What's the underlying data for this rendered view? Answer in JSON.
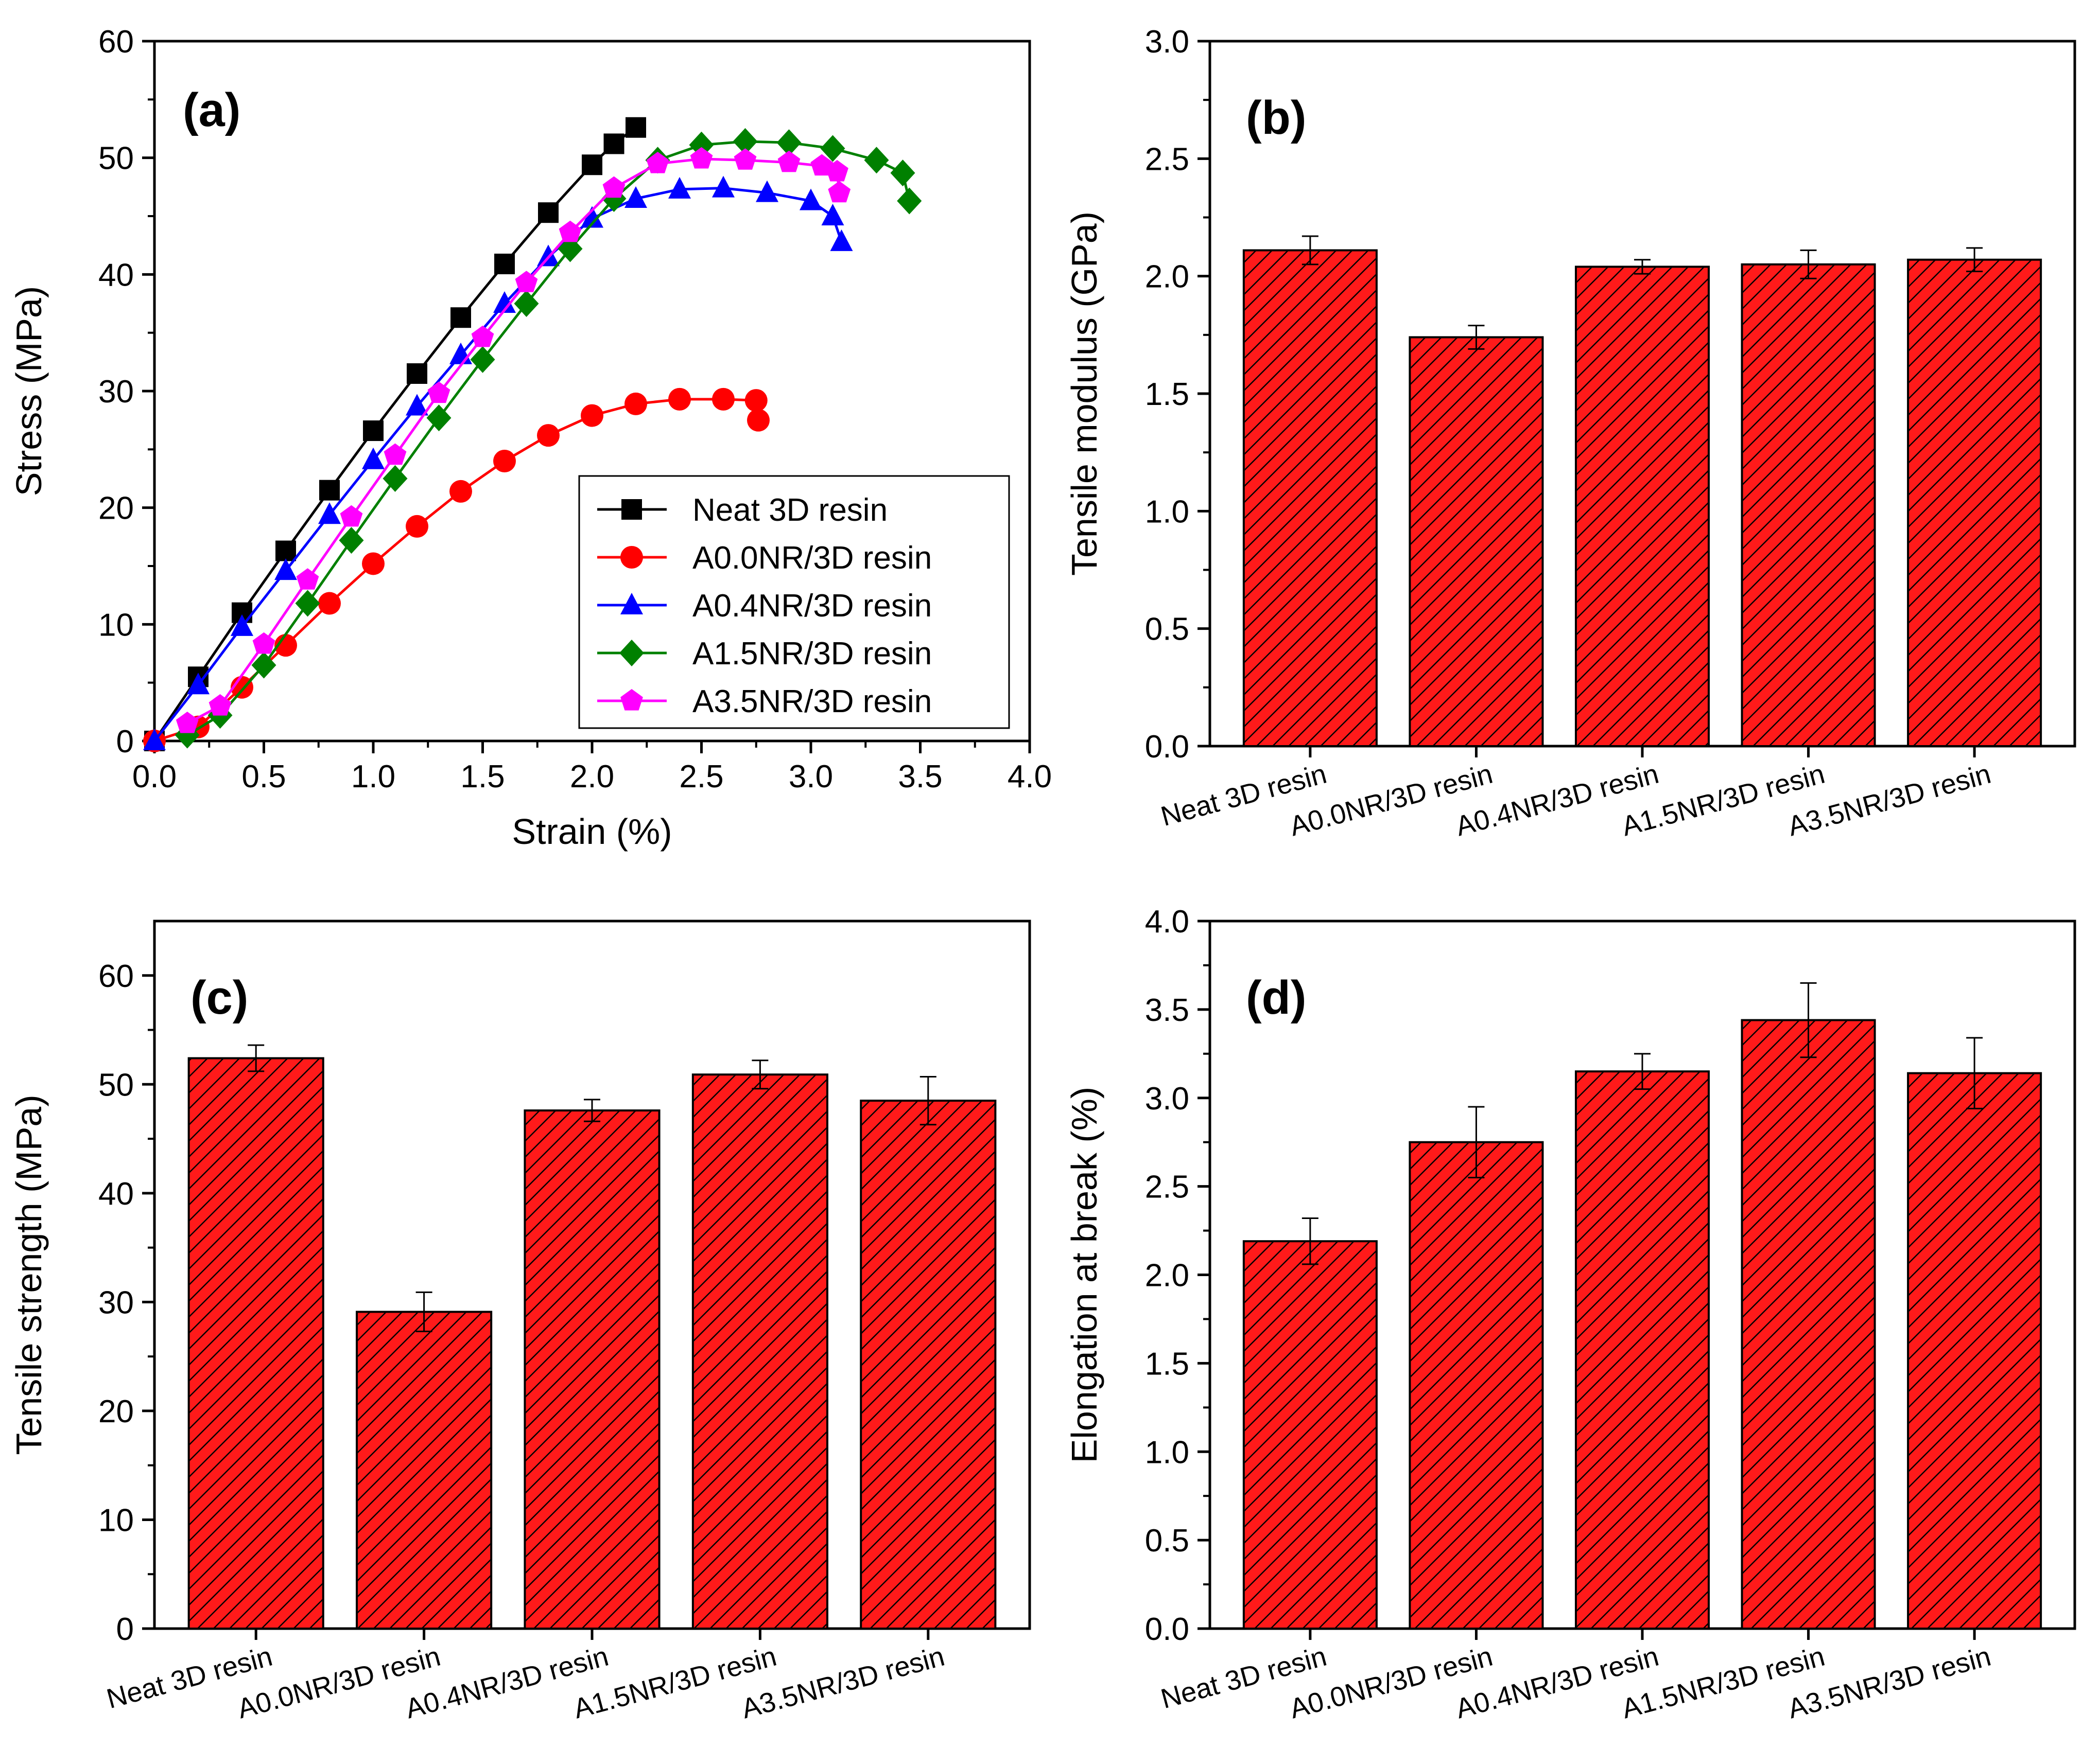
{
  "chart_data": [
    {
      "panel_label": "(a)",
      "type": "scatter",
      "xlabel": "Strain (%)",
      "ylabel": "Stress (MPa)",
      "xlim": [
        0.0,
        4.0
      ],
      "ylim": [
        0,
        60
      ],
      "xticks": [
        "0.0",
        "0.5",
        "1.0",
        "1.5",
        "2.0",
        "2.5",
        "3.0",
        "3.5",
        "4.0"
      ],
      "yticks": [
        "0",
        "10",
        "20",
        "30",
        "40",
        "50",
        "60"
      ],
      "legend_position": "bottom-right",
      "series": [
        {
          "name": "Neat 3D resin",
          "color": "#000000",
          "marker": "square",
          "x": [
            0.0,
            0.2,
            0.4,
            0.6,
            0.8,
            1.0,
            1.2,
            1.4,
            1.6,
            1.8,
            2.0,
            2.1,
            2.2
          ],
          "y": [
            0.0,
            5.5,
            11.0,
            16.3,
            21.5,
            26.6,
            31.5,
            36.3,
            40.9,
            45.3,
            49.4,
            51.2,
            52.6
          ]
        },
        {
          "name": "A0.0NR/3D resin",
          "color": "#ff0000",
          "marker": "circle",
          "x": [
            0.0,
            0.2,
            0.4,
            0.6,
            0.8,
            1.0,
            1.2,
            1.4,
            1.6,
            1.8,
            2.0,
            2.2,
            2.4,
            2.6,
            2.75,
            2.76
          ],
          "y": [
            0.0,
            1.2,
            4.6,
            8.2,
            11.8,
            15.2,
            18.4,
            21.4,
            24.0,
            26.2,
            27.9,
            28.9,
            29.3,
            29.3,
            29.2,
            27.5
          ]
        },
        {
          "name": "A0.4NR/3D resin",
          "color": "#0000ff",
          "marker": "triangle",
          "x": [
            0.0,
            0.2,
            0.4,
            0.6,
            0.8,
            1.0,
            1.2,
            1.4,
            1.6,
            1.8,
            2.0,
            2.2,
            2.4,
            2.6,
            2.8,
            3.0,
            3.1,
            3.14
          ],
          "y": [
            0.0,
            4.8,
            9.8,
            14.6,
            19.4,
            24.1,
            28.7,
            33.1,
            37.5,
            41.5,
            44.8,
            46.5,
            47.3,
            47.4,
            47.0,
            46.3,
            45.0,
            42.8
          ]
        },
        {
          "name": "A1.5NR/3D resin",
          "color": "#008000",
          "marker": "diamond",
          "x": [
            0.15,
            0.3,
            0.5,
            0.7,
            0.9,
            1.1,
            1.3,
            1.5,
            1.7,
            1.9,
            2.1,
            2.3,
            2.5,
            2.7,
            2.9,
            3.1,
            3.3,
            3.42,
            3.45
          ],
          "y": [
            0.5,
            2.2,
            6.5,
            11.8,
            17.2,
            22.5,
            27.7,
            32.7,
            37.5,
            42.2,
            46.5,
            49.8,
            51.1,
            51.4,
            51.3,
            50.8,
            49.8,
            48.7,
            46.3
          ]
        },
        {
          "name": "A3.5NR/3D resin",
          "color": "#ff00ff",
          "marker": "pentagon",
          "x": [
            0.15,
            0.3,
            0.5,
            0.7,
            0.9,
            1.1,
            1.3,
            1.5,
            1.7,
            1.9,
            2.1,
            2.3,
            2.5,
            2.7,
            2.9,
            3.05,
            3.12,
            3.13
          ],
          "y": [
            1.5,
            3.0,
            8.3,
            13.8,
            19.2,
            24.5,
            29.8,
            34.6,
            39.3,
            43.6,
            47.4,
            49.5,
            49.9,
            49.8,
            49.6,
            49.3,
            48.8,
            47.0
          ]
        }
      ]
    },
    {
      "panel_label": "(b)",
      "type": "bar",
      "ylabel": "Tensile modulus (GPa)",
      "ylim": [
        0.0,
        3.0
      ],
      "yticks": [
        "0.0",
        "0.5",
        "1.0",
        "1.5",
        "2.0",
        "2.5",
        "3.0"
      ],
      "categories": [
        "Neat 3D resin",
        "A0.0NR/3D resin",
        "A0.4NR/3D resin",
        "A1.5NR/3D resin",
        "A3.5NR/3D resin"
      ],
      "values": [
        2.11,
        1.74,
        2.04,
        2.05,
        2.07
      ],
      "errors": [
        0.06,
        0.05,
        0.03,
        0.06,
        0.05
      ]
    },
    {
      "panel_label": "(c)",
      "type": "bar",
      "ylabel": "Tensile strength (MPa)",
      "ylim": [
        0,
        65
      ],
      "yticks": [
        "0",
        "10",
        "20",
        "30",
        "40",
        "50",
        "60"
      ],
      "categories": [
        "Neat 3D resin",
        "A0.0NR/3D resin",
        "A0.4NR/3D resin",
        "A1.5NR/3D resin",
        "A3.5NR/3D resin"
      ],
      "values": [
        52.4,
        29.1,
        47.6,
        50.9,
        48.5
      ],
      "errors": [
        1.2,
        1.8,
        1.0,
        1.3,
        2.2
      ]
    },
    {
      "panel_label": "(d)",
      "type": "bar",
      "ylabel": "Elongation at break (%)",
      "ylim": [
        0.0,
        4.0
      ],
      "yticks": [
        "0.0",
        "0.5",
        "1.0",
        "1.5",
        "2.0",
        "2.5",
        "3.0",
        "3.5",
        "4.0"
      ],
      "categories": [
        "Neat 3D resin",
        "A0.0NR/3D resin",
        "A0.4NR/3D resin",
        "A1.5NR/3D resin",
        "A3.5NR/3D resin"
      ],
      "values": [
        2.19,
        2.75,
        3.15,
        3.44,
        3.14
      ],
      "errors": [
        0.13,
        0.2,
        0.1,
        0.21,
        0.2
      ]
    }
  ],
  "colors": {
    "bar_fill": "#ff1a1a",
    "bar_hatch": "#000000"
  }
}
